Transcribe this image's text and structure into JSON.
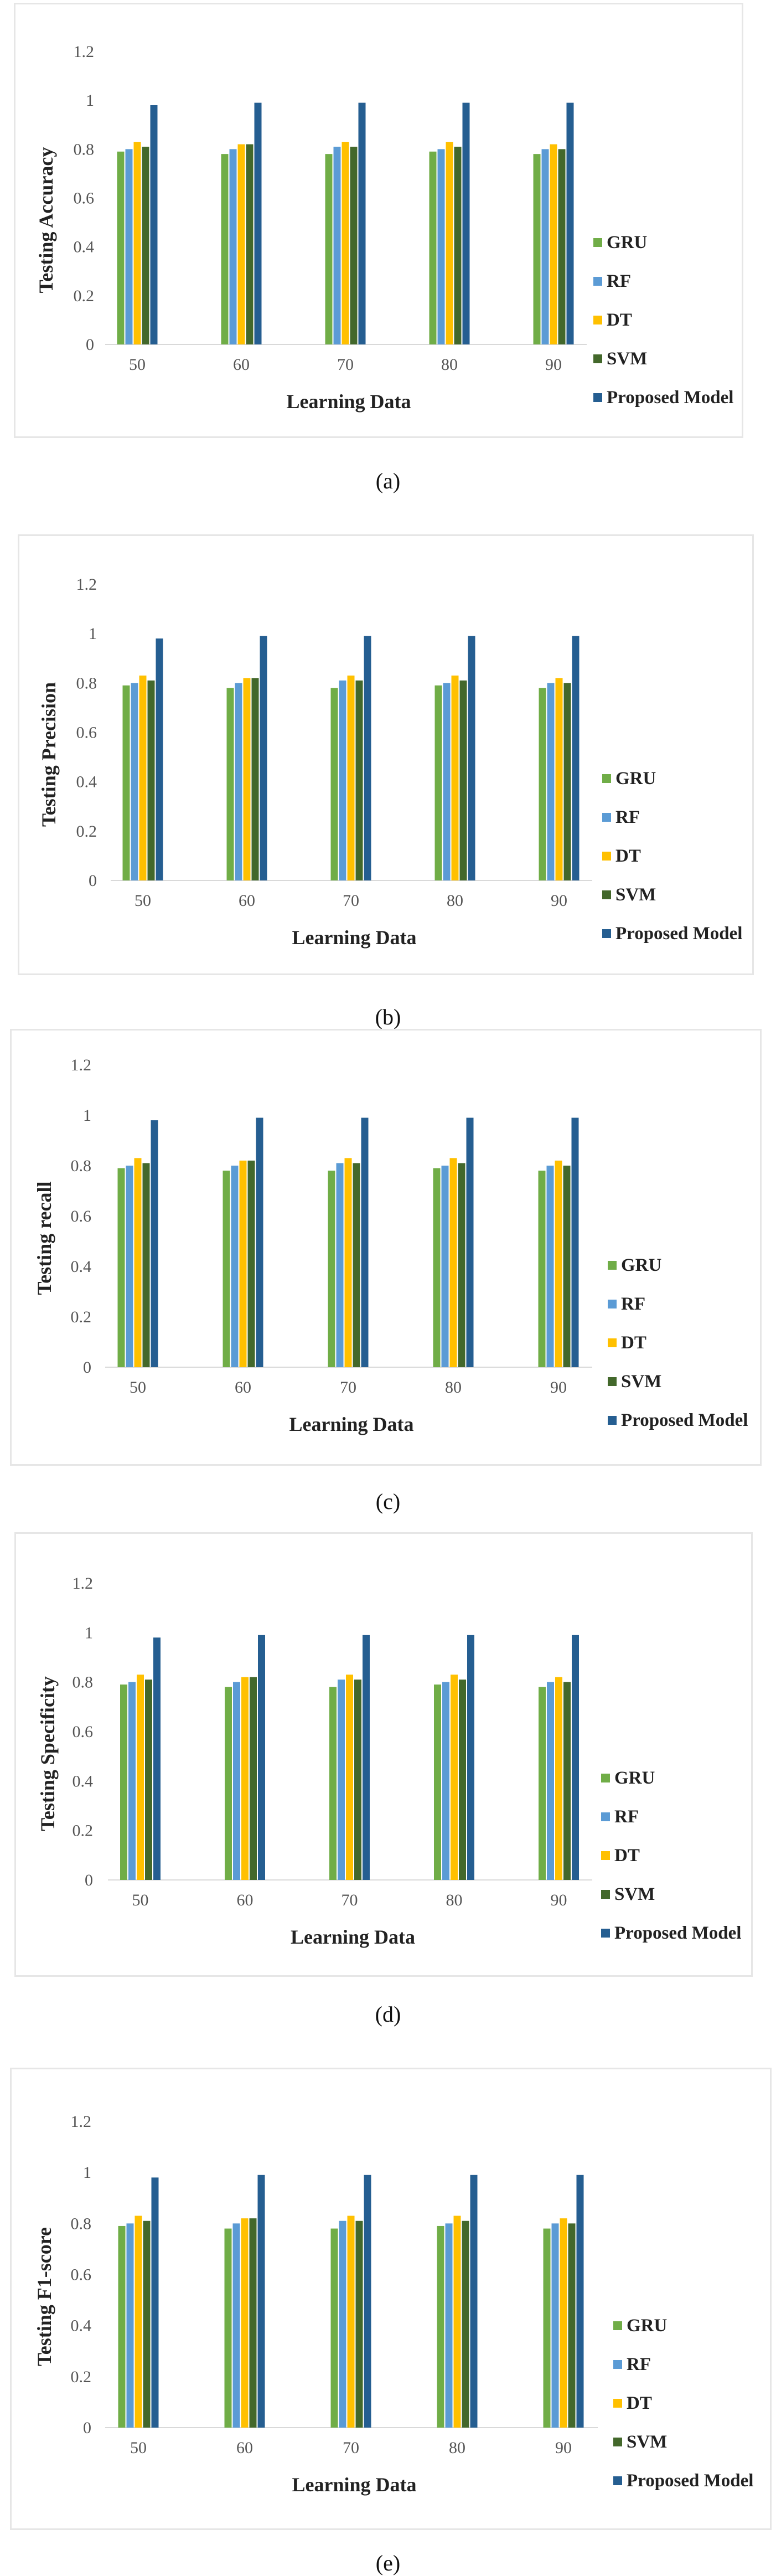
{
  "series_colors": {
    "GRU": "#70AD47",
    "RF": "#5B9BD5",
    "DT": "#FFC000",
    "SVM": "#43682B",
    "Proposed Model": "#255E91"
  },
  "chart_data": [
    {
      "type": "bar",
      "caption": "(a)",
      "title": "",
      "xlabel": "Learning Data",
      "ylabel": "Testing Accuracy",
      "categories": [
        "50",
        "60",
        "70",
        "80",
        "90"
      ],
      "yticks": [
        "0",
        "0.2",
        "0.4",
        "0.6",
        "0.8",
        "1",
        "1.2"
      ],
      "ylim": [
        0,
        1.2
      ],
      "grid": false,
      "legend_position": "right",
      "series": [
        {
          "name": "GRU",
          "values": [
            0.79,
            0.78,
            0.78,
            0.79,
            0.78
          ]
        },
        {
          "name": "RF",
          "values": [
            0.8,
            0.8,
            0.81,
            0.8,
            0.8
          ]
        },
        {
          "name": "DT",
          "values": [
            0.83,
            0.82,
            0.83,
            0.83,
            0.82
          ]
        },
        {
          "name": "SVM",
          "values": [
            0.81,
            0.82,
            0.81,
            0.81,
            0.8
          ]
        },
        {
          "name": "Proposed Model",
          "values": [
            0.98,
            0.99,
            0.99,
            0.99,
            0.99
          ]
        }
      ]
    },
    {
      "type": "bar",
      "caption": "(b)",
      "title": "",
      "xlabel": "Learning Data",
      "ylabel": "Testing Precision",
      "categories": [
        "50",
        "60",
        "70",
        "80",
        "90"
      ],
      "yticks": [
        "0",
        "0.2",
        "0.4",
        "0.6",
        "0.8",
        "1",
        "1.2"
      ],
      "ylim": [
        0,
        1.2
      ],
      "grid": false,
      "legend_position": "right",
      "series": [
        {
          "name": "GRU",
          "values": [
            0.79,
            0.78,
            0.78,
            0.79,
            0.78
          ]
        },
        {
          "name": "RF",
          "values": [
            0.8,
            0.8,
            0.81,
            0.8,
            0.8
          ]
        },
        {
          "name": "DT",
          "values": [
            0.83,
            0.82,
            0.83,
            0.83,
            0.82
          ]
        },
        {
          "name": "SVM",
          "values": [
            0.81,
            0.82,
            0.81,
            0.81,
            0.8
          ]
        },
        {
          "name": "Proposed Model",
          "values": [
            0.98,
            0.99,
            0.99,
            0.99,
            0.99
          ]
        }
      ]
    },
    {
      "type": "bar",
      "caption": "(c)",
      "title": "",
      "xlabel": "Learning Data",
      "ylabel": "Testing recall",
      "categories": [
        "50",
        "60",
        "70",
        "80",
        "90"
      ],
      "yticks": [
        "0",
        "0.2",
        "0.4",
        "0.6",
        "0.8",
        "1",
        "1.2"
      ],
      "ylim": [
        0,
        1.2
      ],
      "grid": false,
      "legend_position": "right",
      "series": [
        {
          "name": "GRU",
          "values": [
            0.79,
            0.78,
            0.78,
            0.79,
            0.78
          ]
        },
        {
          "name": "RF",
          "values": [
            0.8,
            0.8,
            0.81,
            0.8,
            0.8
          ]
        },
        {
          "name": "DT",
          "values": [
            0.83,
            0.82,
            0.83,
            0.83,
            0.82
          ]
        },
        {
          "name": "SVM",
          "values": [
            0.81,
            0.82,
            0.81,
            0.81,
            0.8
          ]
        },
        {
          "name": "Proposed Model",
          "values": [
            0.98,
            0.99,
            0.99,
            0.99,
            0.99
          ]
        }
      ]
    },
    {
      "type": "bar",
      "caption": "(d)",
      "title": "",
      "xlabel": "Learning Data",
      "ylabel": "Testing Specificity",
      "categories": [
        "50",
        "60",
        "70",
        "80",
        "90"
      ],
      "yticks": [
        "0",
        "0.2",
        "0.4",
        "0.6",
        "0.8",
        "1",
        "1.2"
      ],
      "ylim": [
        0,
        1.2
      ],
      "grid": false,
      "legend_position": "right",
      "series": [
        {
          "name": "GRU",
          "values": [
            0.79,
            0.78,
            0.78,
            0.79,
            0.78
          ]
        },
        {
          "name": "RF",
          "values": [
            0.8,
            0.8,
            0.81,
            0.8,
            0.8
          ]
        },
        {
          "name": "DT",
          "values": [
            0.83,
            0.82,
            0.83,
            0.83,
            0.82
          ]
        },
        {
          "name": "SVM",
          "values": [
            0.81,
            0.82,
            0.81,
            0.81,
            0.8
          ]
        },
        {
          "name": "Proposed Model",
          "values": [
            0.98,
            0.99,
            0.99,
            0.99,
            0.99
          ]
        }
      ]
    },
    {
      "type": "bar",
      "caption": "(e)",
      "title": "",
      "xlabel": "Learning Data",
      "ylabel": "Testing F1-score",
      "categories": [
        "50",
        "60",
        "70",
        "80",
        "90"
      ],
      "yticks": [
        "0",
        "0.2",
        "0.4",
        "0.6",
        "0.8",
        "1",
        "1.2"
      ],
      "ylim": [
        0,
        1.2
      ],
      "grid": false,
      "legend_position": "right",
      "series": [
        {
          "name": "GRU",
          "values": [
            0.79,
            0.78,
            0.78,
            0.79,
            0.78
          ]
        },
        {
          "name": "RF",
          "values": [
            0.8,
            0.8,
            0.81,
            0.8,
            0.8
          ]
        },
        {
          "name": "DT",
          "values": [
            0.83,
            0.82,
            0.83,
            0.83,
            0.82
          ]
        },
        {
          "name": "SVM",
          "values": [
            0.81,
            0.82,
            0.81,
            0.81,
            0.8
          ]
        },
        {
          "name": "Proposed Model",
          "values": [
            0.98,
            0.99,
            0.99,
            0.99,
            0.99
          ]
        }
      ]
    }
  ]
}
